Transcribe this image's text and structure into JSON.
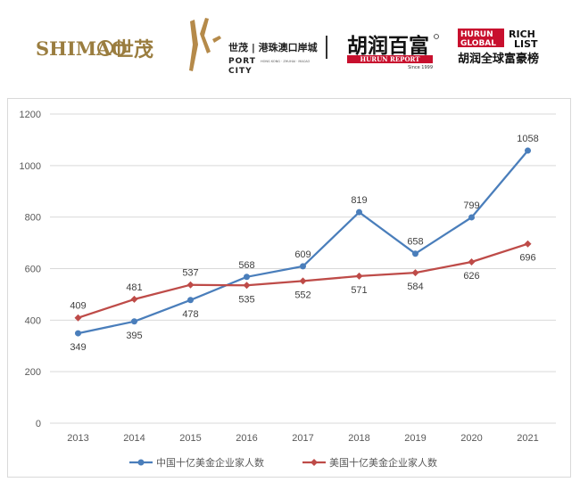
{
  "logos": {
    "shimao_en": "SHIMAO",
    "shimao_cn": "世茂",
    "port_city_cn": "世茂 | 港珠澳口岸城",
    "port_city_en_1": "PORT",
    "port_city_en_2": "CITY",
    "port_city_small": "HONG KONG · ZHUHAI · MACAO",
    "hurun_cn": "胡润百富",
    "hurun_report": "HURUN REPORT",
    "hurun_since": "Since 1999",
    "rich_list_box_1": "HURUN",
    "rich_list_box_2": "GLOBAL",
    "rich_list_1": "RICH",
    "rich_list_2": "LIST",
    "rich_list_cn": "胡润全球富豪榜"
  },
  "colors": {
    "china": "#4a7ebb",
    "usa": "#be4b48",
    "grid": "#d9d9d9",
    "brand_gold": "#9a7d3f",
    "hurun_red": "#c8102e"
  },
  "chart_data": {
    "type": "line",
    "categories": [
      "2013",
      "2014",
      "2015",
      "2016",
      "2017",
      "2018",
      "2019",
      "2020",
      "2021"
    ],
    "ylim": [
      0,
      1200
    ],
    "yticks": [
      "0",
      "200",
      "400",
      "600",
      "800",
      "1000",
      "1200"
    ],
    "grid": true,
    "legend_position": "bottom",
    "series": [
      {
        "name": "中国十亿美金企业家人数",
        "values": [
          349,
          395,
          478,
          568,
          609,
          819,
          658,
          799,
          1058
        ],
        "labels": [
          "349",
          "395",
          "478",
          "568",
          "609",
          "819",
          "658",
          "799",
          "1058"
        ],
        "marker": "circle",
        "label_side": [
          "below",
          "below",
          "below",
          "above",
          "above",
          "above",
          "above",
          "above",
          "above"
        ]
      },
      {
        "name": "美国十亿美金企业家人数",
        "values": [
          409,
          481,
          537,
          535,
          552,
          571,
          584,
          626,
          696
        ],
        "labels": [
          "409",
          "481",
          "537",
          "535",
          "552",
          "571",
          "584",
          "626",
          "696"
        ],
        "marker": "diamond",
        "label_side": [
          "above",
          "above",
          "above",
          "below",
          "below",
          "below",
          "below",
          "below",
          "below"
        ]
      }
    ]
  }
}
